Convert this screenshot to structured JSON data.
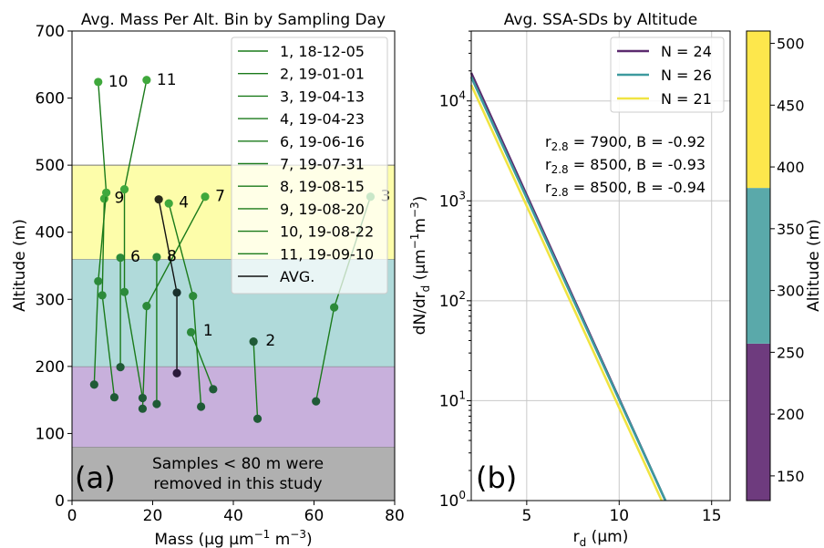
{
  "chart_data": [
    {
      "type": "scatter",
      "title": "Avg. Mass Per Alt. Bin by Sampling Day",
      "xlabel_main": "Mass (µg µm",
      "xlabel_exp1": "−1",
      "xlabel_mid": " m",
      "xlabel_exp2": "−3",
      "xlabel_end": ")",
      "ylabel": "Altitude (m)",
      "xlim": [
        0,
        80
      ],
      "ylim": [
        0,
        700
      ],
      "xticks": [
        0,
        20,
        40,
        60,
        80
      ],
      "yticks": [
        0,
        100,
        200,
        300,
        400,
        500,
        600,
        700
      ],
      "panel_label": "(a)",
      "bands": [
        {
          "from": 0,
          "to": 80,
          "color": "#b0b0b0"
        },
        {
          "from": 80,
          "to": 200,
          "color": "#c8b0dc"
        },
        {
          "from": 200,
          "to": 360,
          "color": "#b0dada"
        },
        {
          "from": 360,
          "to": 500,
          "color": "#fdfdaa"
        }
      ],
      "note_line1": "Samples < 80 m were",
      "note_line2": "removed in this study",
      "legend_position": "top-right",
      "series": [
        {
          "name": "1, 18-12-05",
          "label": "1",
          "color": "#1a7a1a",
          "points": [
            [
              35,
              166
            ],
            [
              29.5,
              251
            ]
          ]
        },
        {
          "name": "2, 19-01-01",
          "label": "2",
          "color": "#1a7a1a",
          "points": [
            [
              46,
              122
            ],
            [
              45,
              237
            ]
          ]
        },
        {
          "name": "3, 19-04-13",
          "label": "3",
          "color": "#1a7a1a",
          "points": [
            [
              60.5,
              148
            ],
            [
              65,
              288
            ],
            [
              74,
              453
            ]
          ]
        },
        {
          "name": "4, 19-04-23",
          "label": "4",
          "color": "#1a7a1a",
          "points": [
            [
              32,
              140
            ],
            [
              30,
              305
            ],
            [
              24,
              443
            ]
          ]
        },
        {
          "name": "6, 19-06-16",
          "label": "6",
          "color": "#1a7a1a",
          "points": [
            [
              12,
              199
            ],
            [
              12,
              362
            ]
          ]
        },
        {
          "name": "7, 19-07-31",
          "label": "7",
          "color": "#1a7a1a",
          "points": [
            [
              17.5,
              137
            ],
            [
              18.5,
              290
            ],
            [
              33,
              453
            ]
          ]
        },
        {
          "name": "8, 19-08-15",
          "label": "8",
          "color": "#1a7a1a",
          "points": [
            [
              21,
              144
            ],
            [
              21,
              363
            ]
          ]
        },
        {
          "name": "9, 19-08-20",
          "label": "9",
          "color": "#1a7a1a",
          "points": [
            [
              10.5,
              154
            ],
            [
              7.5,
              306
            ],
            [
              8,
              450
            ]
          ]
        },
        {
          "name": "10, 19-08-22",
          "label": "10",
          "color": "#1a7a1a",
          "points": [
            [
              5.5,
              173
            ],
            [
              6.5,
              327
            ],
            [
              8.5,
              459
            ],
            [
              6.5,
              624
            ]
          ]
        },
        {
          "name": "11, 19-09-10",
          "label": "11",
          "color": "#1a7a1a",
          "points": [
            [
              17.5,
              153
            ],
            [
              13,
              311
            ],
            [
              13,
              464
            ],
            [
              18.5,
              627
            ]
          ]
        },
        {
          "name": "AVG.",
          "label": "",
          "color": "#111111",
          "points": [
            [
              26,
              190
            ],
            [
              26,
              310
            ],
            [
              21.5,
              449
            ]
          ]
        }
      ],
      "point_label_positions": [
        {
          "text": "1",
          "x": 32.5,
          "y": 254
        },
        {
          "text": "2",
          "x": 48,
          "y": 239
        },
        {
          "text": "3",
          "x": 76.5,
          "y": 455
        },
        {
          "text": "4",
          "x": 26.5,
          "y": 445
        },
        {
          "text": "6",
          "x": 14.5,
          "y": 364
        },
        {
          "text": "7",
          "x": 35.5,
          "y": 455
        },
        {
          "text": "8",
          "x": 23.5,
          "y": 365
        },
        {
          "text": "9",
          "x": 10.5,
          "y": 452
        },
        {
          "text": "10",
          "x": 9,
          "y": 625
        },
        {
          "text": "11",
          "x": 21,
          "y": 628
        }
      ]
    },
    {
      "type": "line",
      "title": "Avg. SSA-SDs by Altitude",
      "xlabel_main": "r",
      "xlabel_sub": "d",
      "xlabel_end": " (µm)",
      "ylabel_a": "dN/dr",
      "ylabel_sub": "d",
      "ylabel_b": " (µm",
      "ylabel_exp1": "−1",
      "ylabel_c": "m",
      "ylabel_exp2": "−3",
      "ylabel_d": ")",
      "xlim": [
        2,
        16
      ],
      "ylim_log10": [
        0,
        4.7
      ],
      "log_y": true,
      "xticks": [
        5,
        10,
        15
      ],
      "yticks_exp": [
        0,
        1,
        2,
        3,
        4
      ],
      "panel_label": "(b)",
      "grid": true,
      "legend_position": "top-right",
      "series": [
        {
          "name": "N = 24",
          "color": "#5b2a6e",
          "r28": 8500,
          "B": -0.94,
          "x": [
            2,
            12.5
          ],
          "log10y": [
            4.28,
            0.0
          ]
        },
        {
          "name": "N = 26",
          "color": "#3d9a9e",
          "r28": 8500,
          "B": -0.93,
          "x": [
            2,
            12.5
          ],
          "log10y": [
            4.24,
            0.0
          ]
        },
        {
          "name": "N = 21",
          "color": "#f0e442",
          "r28": 7900,
          "B": -0.92,
          "x": [
            2,
            12.3
          ],
          "log10y": [
            4.16,
            0.0
          ]
        }
      ],
      "annotations": [
        {
          "prefix": "r",
          "sub": "2.8",
          "text": " = 7900, B = -0.92",
          "color": "#d4a017"
        },
        {
          "prefix": "r",
          "sub": "2.8",
          "text": " = 8500, B = -0.93",
          "color": "#2a8e8e"
        },
        {
          "prefix": "r",
          "sub": "2.8",
          "text": " = 8500, B = -0.94",
          "color": "#4a1a5e"
        }
      ]
    },
    {
      "type": "heatmap",
      "colorbar_label": "Altitude (m)",
      "range": [
        130,
        510
      ],
      "ticks": [
        150,
        200,
        250,
        300,
        350,
        400,
        450,
        500
      ],
      "segments": [
        {
          "from": 130,
          "to": 257,
          "color": "#6e3b7e"
        },
        {
          "from": 257,
          "to": 383,
          "color": "#5aa9aa"
        },
        {
          "from": 383,
          "to": 510,
          "color": "#fde74c"
        }
      ]
    }
  ]
}
